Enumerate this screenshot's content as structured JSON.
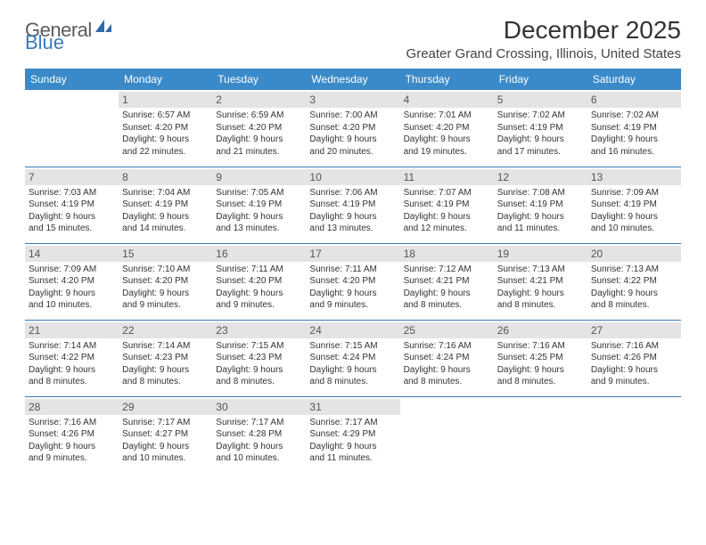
{
  "logo": {
    "text_a": "General",
    "text_b": "Blue"
  },
  "title": "December 2025",
  "subtitle": "Greater Grand Crossing, Illinois, United States",
  "header_color": "#3a8ac9",
  "rule_color": "#3a7ab8",
  "daynum_bg": "#e4e4e4",
  "days": [
    "Sunday",
    "Monday",
    "Tuesday",
    "Wednesday",
    "Thursday",
    "Friday",
    "Saturday"
  ],
  "weeks": [
    [
      {
        "n": "",
        "sr": "",
        "ss": "",
        "dl1": "",
        "dl2": ""
      },
      {
        "n": "1",
        "sr": "Sunrise: 6:57 AM",
        "ss": "Sunset: 4:20 PM",
        "dl1": "Daylight: 9 hours",
        "dl2": "and 22 minutes."
      },
      {
        "n": "2",
        "sr": "Sunrise: 6:59 AM",
        "ss": "Sunset: 4:20 PM",
        "dl1": "Daylight: 9 hours",
        "dl2": "and 21 minutes."
      },
      {
        "n": "3",
        "sr": "Sunrise: 7:00 AM",
        "ss": "Sunset: 4:20 PM",
        "dl1": "Daylight: 9 hours",
        "dl2": "and 20 minutes."
      },
      {
        "n": "4",
        "sr": "Sunrise: 7:01 AM",
        "ss": "Sunset: 4:20 PM",
        "dl1": "Daylight: 9 hours",
        "dl2": "and 19 minutes."
      },
      {
        "n": "5",
        "sr": "Sunrise: 7:02 AM",
        "ss": "Sunset: 4:19 PM",
        "dl1": "Daylight: 9 hours",
        "dl2": "and 17 minutes."
      },
      {
        "n": "6",
        "sr": "Sunrise: 7:02 AM",
        "ss": "Sunset: 4:19 PM",
        "dl1": "Daylight: 9 hours",
        "dl2": "and 16 minutes."
      }
    ],
    [
      {
        "n": "7",
        "sr": "Sunrise: 7:03 AM",
        "ss": "Sunset: 4:19 PM",
        "dl1": "Daylight: 9 hours",
        "dl2": "and 15 minutes."
      },
      {
        "n": "8",
        "sr": "Sunrise: 7:04 AM",
        "ss": "Sunset: 4:19 PM",
        "dl1": "Daylight: 9 hours",
        "dl2": "and 14 minutes."
      },
      {
        "n": "9",
        "sr": "Sunrise: 7:05 AM",
        "ss": "Sunset: 4:19 PM",
        "dl1": "Daylight: 9 hours",
        "dl2": "and 13 minutes."
      },
      {
        "n": "10",
        "sr": "Sunrise: 7:06 AM",
        "ss": "Sunset: 4:19 PM",
        "dl1": "Daylight: 9 hours",
        "dl2": "and 13 minutes."
      },
      {
        "n": "11",
        "sr": "Sunrise: 7:07 AM",
        "ss": "Sunset: 4:19 PM",
        "dl1": "Daylight: 9 hours",
        "dl2": "and 12 minutes."
      },
      {
        "n": "12",
        "sr": "Sunrise: 7:08 AM",
        "ss": "Sunset: 4:19 PM",
        "dl1": "Daylight: 9 hours",
        "dl2": "and 11 minutes."
      },
      {
        "n": "13",
        "sr": "Sunrise: 7:09 AM",
        "ss": "Sunset: 4:19 PM",
        "dl1": "Daylight: 9 hours",
        "dl2": "and 10 minutes."
      }
    ],
    [
      {
        "n": "14",
        "sr": "Sunrise: 7:09 AM",
        "ss": "Sunset: 4:20 PM",
        "dl1": "Daylight: 9 hours",
        "dl2": "and 10 minutes."
      },
      {
        "n": "15",
        "sr": "Sunrise: 7:10 AM",
        "ss": "Sunset: 4:20 PM",
        "dl1": "Daylight: 9 hours",
        "dl2": "and 9 minutes."
      },
      {
        "n": "16",
        "sr": "Sunrise: 7:11 AM",
        "ss": "Sunset: 4:20 PM",
        "dl1": "Daylight: 9 hours",
        "dl2": "and 9 minutes."
      },
      {
        "n": "17",
        "sr": "Sunrise: 7:11 AM",
        "ss": "Sunset: 4:20 PM",
        "dl1": "Daylight: 9 hours",
        "dl2": "and 9 minutes."
      },
      {
        "n": "18",
        "sr": "Sunrise: 7:12 AM",
        "ss": "Sunset: 4:21 PM",
        "dl1": "Daylight: 9 hours",
        "dl2": "and 8 minutes."
      },
      {
        "n": "19",
        "sr": "Sunrise: 7:13 AM",
        "ss": "Sunset: 4:21 PM",
        "dl1": "Daylight: 9 hours",
        "dl2": "and 8 minutes."
      },
      {
        "n": "20",
        "sr": "Sunrise: 7:13 AM",
        "ss": "Sunset: 4:22 PM",
        "dl1": "Daylight: 9 hours",
        "dl2": "and 8 minutes."
      }
    ],
    [
      {
        "n": "21",
        "sr": "Sunrise: 7:14 AM",
        "ss": "Sunset: 4:22 PM",
        "dl1": "Daylight: 9 hours",
        "dl2": "and 8 minutes."
      },
      {
        "n": "22",
        "sr": "Sunrise: 7:14 AM",
        "ss": "Sunset: 4:23 PM",
        "dl1": "Daylight: 9 hours",
        "dl2": "and 8 minutes."
      },
      {
        "n": "23",
        "sr": "Sunrise: 7:15 AM",
        "ss": "Sunset: 4:23 PM",
        "dl1": "Daylight: 9 hours",
        "dl2": "and 8 minutes."
      },
      {
        "n": "24",
        "sr": "Sunrise: 7:15 AM",
        "ss": "Sunset: 4:24 PM",
        "dl1": "Daylight: 9 hours",
        "dl2": "and 8 minutes."
      },
      {
        "n": "25",
        "sr": "Sunrise: 7:16 AM",
        "ss": "Sunset: 4:24 PM",
        "dl1": "Daylight: 9 hours",
        "dl2": "and 8 minutes."
      },
      {
        "n": "26",
        "sr": "Sunrise: 7:16 AM",
        "ss": "Sunset: 4:25 PM",
        "dl1": "Daylight: 9 hours",
        "dl2": "and 8 minutes."
      },
      {
        "n": "27",
        "sr": "Sunrise: 7:16 AM",
        "ss": "Sunset: 4:26 PM",
        "dl1": "Daylight: 9 hours",
        "dl2": "and 9 minutes."
      }
    ],
    [
      {
        "n": "28",
        "sr": "Sunrise: 7:16 AM",
        "ss": "Sunset: 4:26 PM",
        "dl1": "Daylight: 9 hours",
        "dl2": "and 9 minutes."
      },
      {
        "n": "29",
        "sr": "Sunrise: 7:17 AM",
        "ss": "Sunset: 4:27 PM",
        "dl1": "Daylight: 9 hours",
        "dl2": "and 10 minutes."
      },
      {
        "n": "30",
        "sr": "Sunrise: 7:17 AM",
        "ss": "Sunset: 4:28 PM",
        "dl1": "Daylight: 9 hours",
        "dl2": "and 10 minutes."
      },
      {
        "n": "31",
        "sr": "Sunrise: 7:17 AM",
        "ss": "Sunset: 4:29 PM",
        "dl1": "Daylight: 9 hours",
        "dl2": "and 11 minutes."
      },
      {
        "n": "",
        "sr": "",
        "ss": "",
        "dl1": "",
        "dl2": ""
      },
      {
        "n": "",
        "sr": "",
        "ss": "",
        "dl1": "",
        "dl2": ""
      },
      {
        "n": "",
        "sr": "",
        "ss": "",
        "dl1": "",
        "dl2": ""
      }
    ]
  ]
}
